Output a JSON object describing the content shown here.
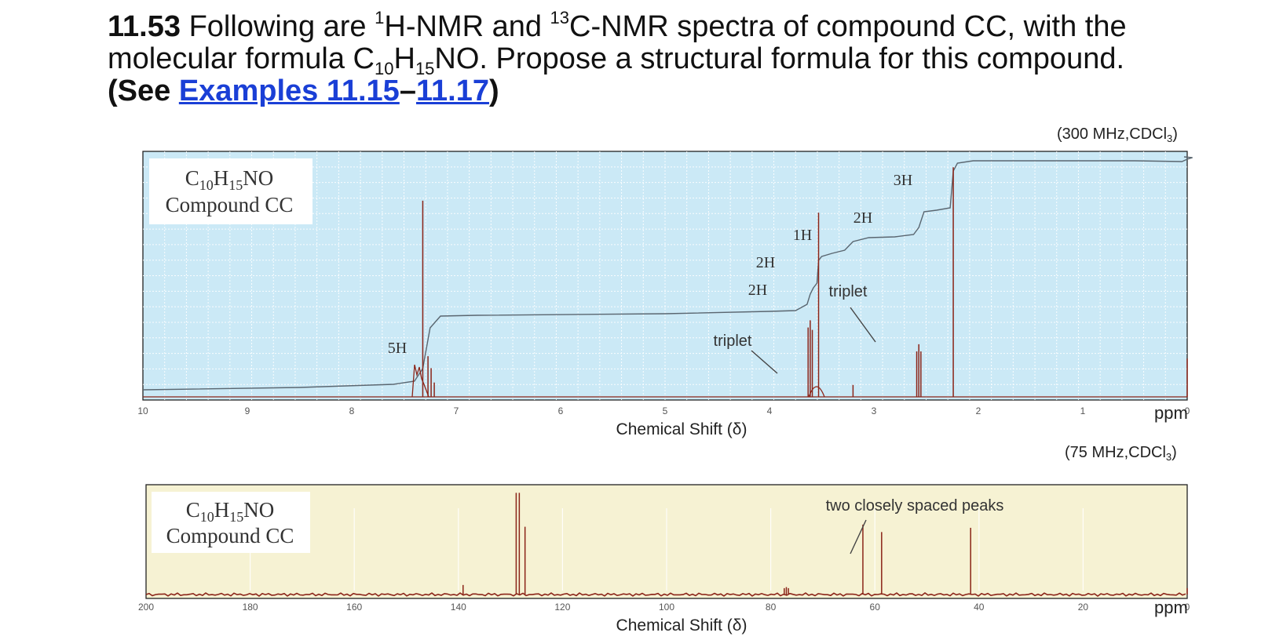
{
  "question": {
    "number": "11.53",
    "text_a": "Following are ",
    "sup_1": "1",
    "text_b": "H-NMR and ",
    "sup_13": "13",
    "text_c": "C-NMR spectra of compound CC, with the",
    "text_d": "molecular formula C",
    "sub_c": "10",
    "text_e": "H",
    "sub_h": "15",
    "text_f": "NO. Propose a structural formula for this compound.",
    "see_open": "(See ",
    "link1": "Examples 11.15",
    "dash": "–",
    "link2": "11.17",
    "see_close": ")"
  },
  "colors": {
    "h_bg": "#cbe9f6",
    "c_bg": "#f6f2d3",
    "grid": "#ffffff",
    "peak": "#8b2418",
    "integral": "#5a6670",
    "link": "#1a3fd6"
  },
  "chart_data": [
    {
      "type": "line",
      "spectrum": "1H-NMR",
      "condition_pre": "(300 MHz,CDCl",
      "condition_sub": "3",
      "condition_post": ")",
      "formula_pre": "C",
      "formula_c": "10",
      "formula_h": "H",
      "formula_h_sub": "15",
      "formula_post": "NO",
      "compound": "Compound CC",
      "xlabel": "Chemical Shift (δ)",
      "unit": "ppm",
      "xlim": [
        10,
        0
      ],
      "ticks": [
        {
          "v": 10,
          "label": "10"
        },
        {
          "v": 9,
          "label": "9"
        },
        {
          "v": 8,
          "label": "8"
        },
        {
          "v": 7,
          "label": "7"
        },
        {
          "v": 6,
          "label": "6"
        },
        {
          "v": 5,
          "label": "5"
        },
        {
          "v": 4,
          "label": "4"
        },
        {
          "v": 3,
          "label": "3"
        },
        {
          "v": 2,
          "label": "2"
        },
        {
          "v": 1,
          "label": "1"
        },
        {
          "v": 0,
          "label": "0"
        }
      ],
      "peaks": [
        {
          "x": 7.32,
          "h": 0.82,
          "name": "aromatic"
        },
        {
          "x": 7.27,
          "h": 0.17
        },
        {
          "x": 7.24,
          "h": 0.12
        },
        {
          "x": 7.21,
          "h": 0.06
        },
        {
          "x": 3.63,
          "h": 0.29,
          "name": "triplet-a"
        },
        {
          "x": 3.61,
          "h": 0.32
        },
        {
          "x": 3.59,
          "h": 0.28
        },
        {
          "x": 3.53,
          "h": 0.77,
          "name": "singlet-2h"
        },
        {
          "x": 3.2,
          "h": 0.05,
          "name": "oh"
        },
        {
          "x": 2.59,
          "h": 0.19,
          "name": "triplet-b"
        },
        {
          "x": 2.57,
          "h": 0.22
        },
        {
          "x": 2.55,
          "h": 0.19
        },
        {
          "x": 2.24,
          "h": 0.96,
          "name": "singlet-3h"
        },
        {
          "x": 0.0,
          "h": 0.16,
          "name": "tms"
        }
      ],
      "integrals": [
        {
          "label": "5H"
        },
        {
          "label": "2H"
        },
        {
          "label": "2H"
        },
        {
          "label": "1H"
        },
        {
          "label": "2H"
        },
        {
          "label": "3H"
        }
      ],
      "annotations": [
        {
          "label": "triplet"
        },
        {
          "label": "triplet"
        }
      ]
    },
    {
      "type": "line",
      "spectrum": "13C-NMR",
      "condition_pre": "(75 MHz,CDCl",
      "condition_sub": "3",
      "condition_post": ")",
      "formula_pre": "C",
      "formula_c": "10",
      "formula_h": "H",
      "formula_h_sub": "15",
      "formula_post": "NO",
      "compound": "Compound CC",
      "xlabel": "Chemical Shift (δ)",
      "unit": "ppm",
      "xlim": [
        200,
        0
      ],
      "ticks": [
        {
          "v": 200,
          "label": "200"
        },
        {
          "v": 180,
          "label": "180"
        },
        {
          "v": 160,
          "label": "160"
        },
        {
          "v": 140,
          "label": "140"
        },
        {
          "v": 120,
          "label": "120"
        },
        {
          "v": 100,
          "label": "100"
        },
        {
          "v": 80,
          "label": "80"
        },
        {
          "v": 60,
          "label": "60"
        },
        {
          "v": 40,
          "label": "40"
        },
        {
          "v": 20,
          "label": "20"
        },
        {
          "v": 0,
          "label": "0"
        }
      ],
      "peaks": [
        {
          "x": 139.1,
          "h": 0.09
        },
        {
          "x": 128.9,
          "h": 0.96
        },
        {
          "x": 128.3,
          "h": 0.96
        },
        {
          "x": 127.2,
          "h": 0.64
        },
        {
          "x": 77.4,
          "h": 0.06
        },
        {
          "x": 77.0,
          "h": 0.07
        },
        {
          "x": 76.6,
          "h": 0.06
        },
        {
          "x": 62.3,
          "h": 0.66
        },
        {
          "x": 58.7,
          "h": 0.59
        },
        {
          "x": 41.6,
          "h": 0.63
        },
        {
          "x": 0.0,
          "h": 0.06
        }
      ],
      "annotations": [
        {
          "label": "two closely spaced peaks"
        }
      ]
    }
  ]
}
